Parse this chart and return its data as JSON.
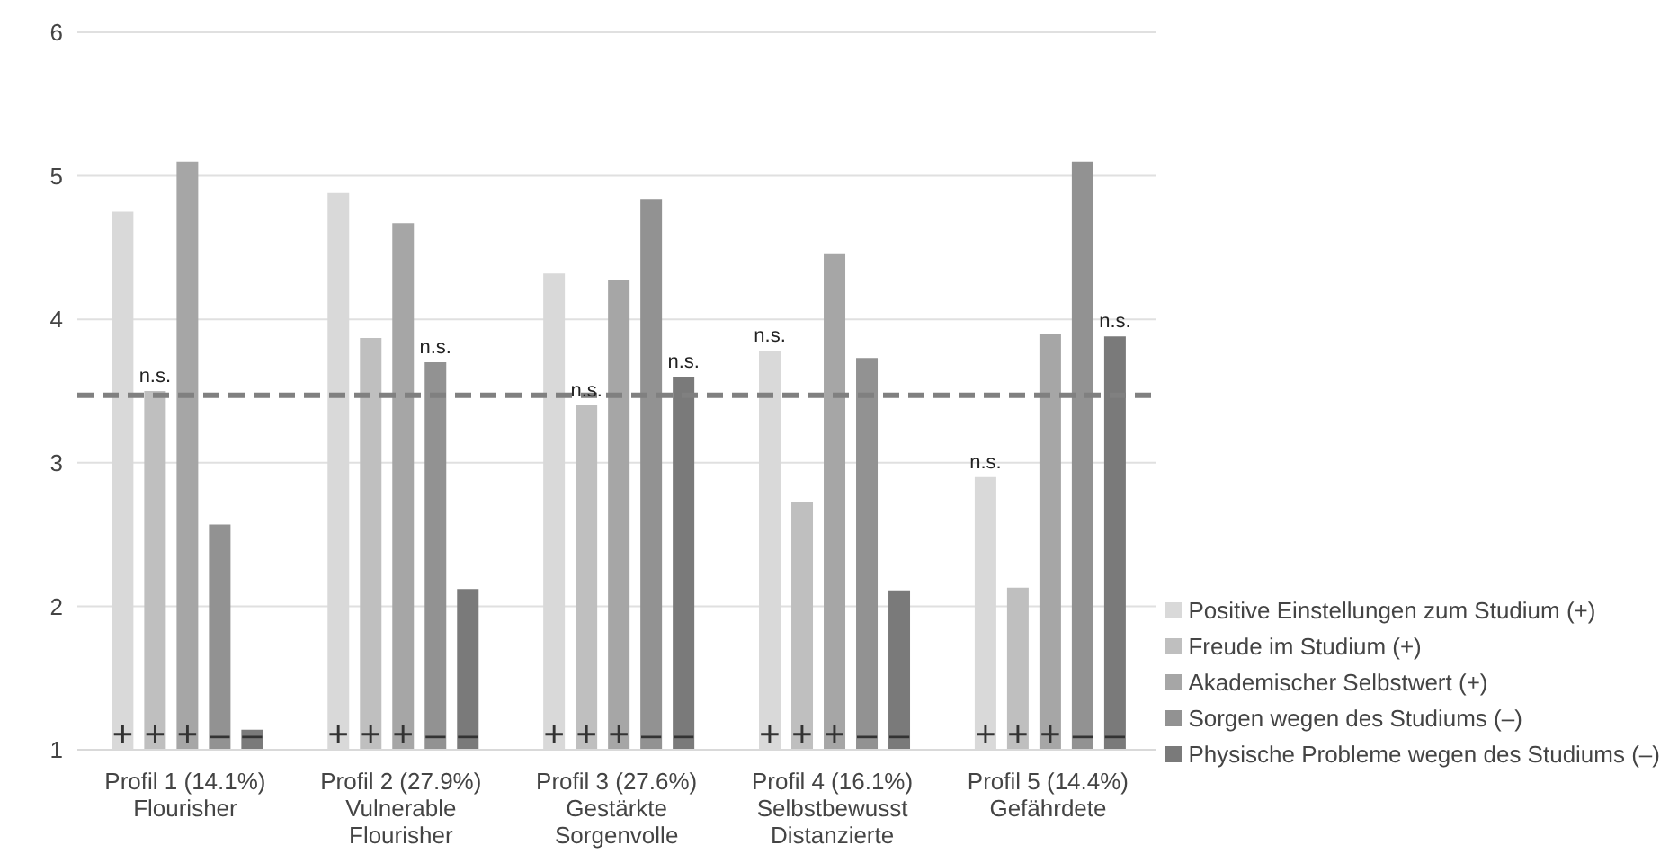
{
  "chart_data": {
    "type": "bar",
    "categories": [
      "Profil 1 (14.1%)\nFlourisher",
      "Profil 2 (27.9%)\nVulnerable\nFlourisher",
      "Profil 3 (27.6%)\nGestärkte\nSorgenvolle",
      "Profil 4 (16.1%)\nSelbstbewusst\nDistanzierte",
      "Profil 5 (14.4%)\nGefährdete"
    ],
    "series": [
      {
        "name": "Positive Einstellungen zum Studium (+)",
        "color": "#d9d9d9",
        "values": [
          4.75,
          4.88,
          4.32,
          3.78,
          2.9
        ],
        "value_labels": [
          null,
          null,
          null,
          "n.s.",
          "n.s."
        ]
      },
      {
        "name": "Freude im Studium (+)",
        "color": "#bfbfbf",
        "values": [
          3.5,
          3.87,
          3.4,
          2.73,
          2.13
        ],
        "value_labels": [
          "n.s.",
          null,
          "n.s.",
          null,
          null
        ]
      },
      {
        "name": "Akademischer Selbstwert (+)",
        "color": "#a6a6a6",
        "values": [
          5.1,
          4.67,
          4.27,
          4.46,
          3.9
        ],
        "value_labels": [
          null,
          null,
          null,
          null,
          null
        ]
      },
      {
        "name": "Sorgen wegen des Studiums (–)",
        "color": "#929292",
        "values": [
          2.57,
          3.7,
          4.84,
          3.73,
          5.1
        ],
        "value_labels": [
          null,
          "n.s.",
          null,
          null,
          null
        ]
      },
      {
        "name": "Physische Probleme wegen des Studiums (–)",
        "color": "#7a7a7a",
        "values": [
          1.14,
          2.12,
          3.6,
          2.11,
          3.88
        ],
        "value_labels": [
          null,
          null,
          "n.s.",
          null,
          "n.s."
        ]
      }
    ],
    "ylim": [
      1,
      6
    ],
    "yticks": [
      1,
      2,
      3,
      4,
      5,
      6
    ],
    "grid": "y",
    "legend": "right",
    "ref_lines": [
      {
        "axis": "y",
        "value": 3.47,
        "color": "#808080",
        "line_style": "dashed"
      }
    ],
    "annotations": [
      {
        "text": "+",
        "x": "Profil 1 (14.1%)\nFlourisher",
        "y": 1.1
      },
      {
        "text": "+",
        "x": "Profil 1 (14.1%)\nFlourisher",
        "y": 1.1
      },
      {
        "text": "+",
        "x": "Profil 1 (14.1%)\nFlourisher",
        "y": 1.1
      },
      {
        "text": "–",
        "x": "Profil 1 (14.1%)\nFlourisher",
        "y": 1.1
      },
      {
        "text": "–",
        "x": "Profil 1 (14.1%)\nFlourisher",
        "y": 1.1
      },
      {
        "text": "+",
        "x": "Profil 2 (27.9%)\nVulnerable\nFlourisher",
        "y": 1.1
      },
      {
        "text": "+",
        "x": "Profil 2 (27.9%)\nVulnerable\nFlourisher",
        "y": 1.1
      },
      {
        "text": "+",
        "x": "Profil 2 (27.9%)\nVulnerable\nFlourisher",
        "y": 1.1
      },
      {
        "text": "–",
        "x": "Profil 2 (27.9%)\nVulnerable\nFlourisher",
        "y": 1.1
      },
      {
        "text": "–",
        "x": "Profil 2 (27.9%)\nVulnerable\nFlourisher",
        "y": 1.1
      },
      {
        "text": "+",
        "x": "Profil 3 (27.6%)\nGestärkte\nSorgenvolle",
        "y": 1.1
      },
      {
        "text": "+",
        "x": "Profil 3 (27.6%)\nGestärkte\nSorgenvolle",
        "y": 1.1
      },
      {
        "text": "+",
        "x": "Profil 3 (27.6%)\nGestärkte\nSorgenvolle",
        "y": 1.1
      },
      {
        "text": "–",
        "x": "Profil 3 (27.6%)\nGestärkte\nSorgenvolle",
        "y": 1.1
      },
      {
        "text": "–",
        "x": "Profil 3 (27.6%)\nGestärkte\nSorgenvolle",
        "y": 1.1
      },
      {
        "text": "+",
        "x": "Profil 4 (16.1%)\nSelbstbewusst\nDistanzierte",
        "y": 1.1
      },
      {
        "text": "+",
        "x": "Profil 4 (16.1%)\nSelbstbewusst\nDistanzierte",
        "y": 1.1
      },
      {
        "text": "+",
        "x": "Profil 4 (16.1%)\nSelbstbewusst\nDistanzierte",
        "y": 1.1
      },
      {
        "text": "–",
        "x": "Profil 4 (16.1%)\nSelbstbewusst\nDistanzierte",
        "y": 1.1
      },
      {
        "text": "–",
        "x": "Profil 4 (16.1%)\nSelbstbewusst\nDistanzierte",
        "y": 1.1
      },
      {
        "text": "+",
        "x": "Profil 5 (14.4%)\nGefährdete",
        "y": 1.1
      },
      {
        "text": "+",
        "x": "Profil 5 (14.4%)\nGefährdete",
        "y": 1.1
      },
      {
        "text": "+",
        "x": "Profil 5 (14.4%)\nGefährdete",
        "y": 1.1
      },
      {
        "text": "–",
        "x": "Profil 5 (14.4%)\nGefährdete",
        "y": 1.1
      },
      {
        "text": "–",
        "x": "Profil 5 (14.4%)\nGefährdete",
        "y": 1.1
      }
    ]
  }
}
